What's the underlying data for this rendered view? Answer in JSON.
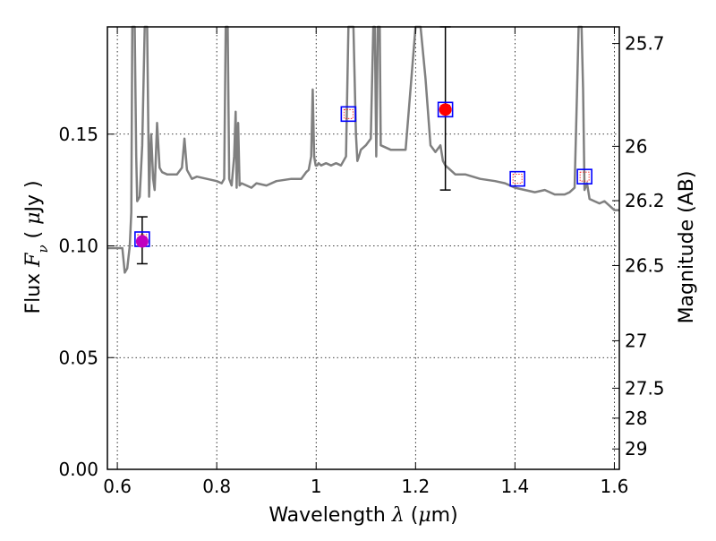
{
  "chart_data": {
    "type": "line",
    "xlabel": "Wavelength  λ (μm)",
    "ylabel": "Flux  Fν  ( μJy )",
    "y2label": "Magnitude (AB)",
    "xlim": [
      0.58,
      1.61
    ],
    "ylim": [
      0.0,
      0.198
    ],
    "x_ticks": [
      0.6,
      0.8,
      1,
      1.2,
      1.4,
      1.6
    ],
    "x_tick_labels": [
      "0.6",
      "0.8",
      "1",
      "1.2",
      "1.4",
      "1.6"
    ],
    "y_ticks": [
      0.0,
      0.05,
      0.1,
      0.15
    ],
    "y_tick_labels": [
      "0.00",
      "0.05",
      "0.10",
      "0.15"
    ],
    "y2_ticks": [
      {
        "mag": 25.7,
        "label": "25.7"
      },
      {
        "mag": 26,
        "label": "26"
      },
      {
        "mag": 26.2,
        "label": "26.2"
      },
      {
        "mag": 26.5,
        "label": "26.5"
      },
      {
        "mag": 27,
        "label": "27"
      },
      {
        "mag": 27.5,
        "label": "27.5"
      },
      {
        "mag": 28,
        "label": "28"
      },
      {
        "mag": 29,
        "label": "29"
      }
    ],
    "grid": true,
    "series": [
      {
        "kind": "model_spectrum",
        "color": "#808080",
        "x": [
          0.58,
          0.6,
          0.61,
          0.615,
          0.62,
          0.625,
          0.628,
          0.63,
          0.632,
          0.635,
          0.638,
          0.64,
          0.645,
          0.65,
          0.655,
          0.66,
          0.664,
          0.666,
          0.668,
          0.672,
          0.675,
          0.68,
          0.685,
          0.69,
          0.7,
          0.72,
          0.73,
          0.735,
          0.74,
          0.75,
          0.76,
          0.78,
          0.8,
          0.81,
          0.815,
          0.818,
          0.82,
          0.822,
          0.825,
          0.83,
          0.835,
          0.838,
          0.84,
          0.843,
          0.846,
          0.85,
          0.86,
          0.87,
          0.88,
          0.9,
          0.92,
          0.95,
          0.97,
          0.98,
          0.985,
          0.99,
          0.993,
          0.996,
          0.999,
          1.002,
          1.005,
          1.01,
          1.02,
          1.03,
          1.04,
          1.05,
          1.06,
          1.065,
          1.07,
          1.075,
          1.08,
          1.083,
          1.086,
          1.09,
          1.1,
          1.11,
          1.115,
          1.118,
          1.121,
          1.124,
          1.128,
          1.13,
          1.15,
          1.18,
          1.2,
          1.21,
          1.22,
          1.23,
          1.24,
          1.25,
          1.255,
          1.26,
          1.27,
          1.28,
          1.3,
          1.33,
          1.36,
          1.38,
          1.4,
          1.42,
          1.44,
          1.46,
          1.48,
          1.5,
          1.51,
          1.52,
          1.525,
          1.528,
          1.531,
          1.534,
          1.537,
          1.54,
          1.545,
          1.55,
          1.56,
          1.57,
          1.58,
          1.59,
          1.6,
          1.61
        ],
        "y": [
          0.099,
          0.099,
          0.099,
          0.088,
          0.09,
          0.1,
          0.115,
          0.198,
          0.198,
          0.198,
          0.14,
          0.12,
          0.122,
          0.145,
          0.198,
          0.198,
          0.122,
          0.14,
          0.15,
          0.13,
          0.125,
          0.155,
          0.135,
          0.133,
          0.132,
          0.132,
          0.135,
          0.148,
          0.134,
          0.13,
          0.131,
          0.13,
          0.129,
          0.128,
          0.13,
          0.198,
          0.198,
          0.198,
          0.13,
          0.127,
          0.14,
          0.16,
          0.126,
          0.155,
          0.127,
          0.128,
          0.127,
          0.126,
          0.128,
          0.127,
          0.129,
          0.13,
          0.13,
          0.133,
          0.134,
          0.14,
          0.17,
          0.14,
          0.136,
          0.136,
          0.137,
          0.136,
          0.137,
          0.136,
          0.137,
          0.136,
          0.14,
          0.198,
          0.198,
          0.198,
          0.15,
          0.138,
          0.14,
          0.143,
          0.145,
          0.148,
          0.198,
          0.198,
          0.14,
          0.198,
          0.198,
          0.145,
          0.143,
          0.143,
          0.198,
          0.198,
          0.175,
          0.145,
          0.142,
          0.145,
          0.138,
          0.136,
          0.134,
          0.132,
          0.132,
          0.13,
          0.129,
          0.128,
          0.126,
          0.125,
          0.124,
          0.125,
          0.123,
          0.123,
          0.124,
          0.126,
          0.17,
          0.198,
          0.198,
          0.198,
          0.17,
          0.125,
          0.128,
          0.121,
          0.12,
          0.119,
          0.12,
          0.118,
          0.116,
          0.116
        ]
      },
      {
        "kind": "photometry",
        "points": [
          {
            "x": 0.65,
            "y": 0.102,
            "yerr_low": 0.092,
            "yerr_high": 0.113,
            "color": "#c000c0"
          },
          {
            "x": 1.26,
            "y": 0.161,
            "yerr_low": 0.125,
            "yerr_high": 0.198,
            "color": "#ff0000"
          }
        ]
      },
      {
        "kind": "model_photometry",
        "points": [
          {
            "x": 0.65,
            "y": 0.103
          },
          {
            "x": 1.065,
            "y": 0.159
          },
          {
            "x": 1.26,
            "y": 0.161
          },
          {
            "x": 1.405,
            "y": 0.13
          },
          {
            "x": 1.54,
            "y": 0.131
          }
        ],
        "outer_color": "#0000ff",
        "inner_color": "#ff0000"
      }
    ]
  }
}
